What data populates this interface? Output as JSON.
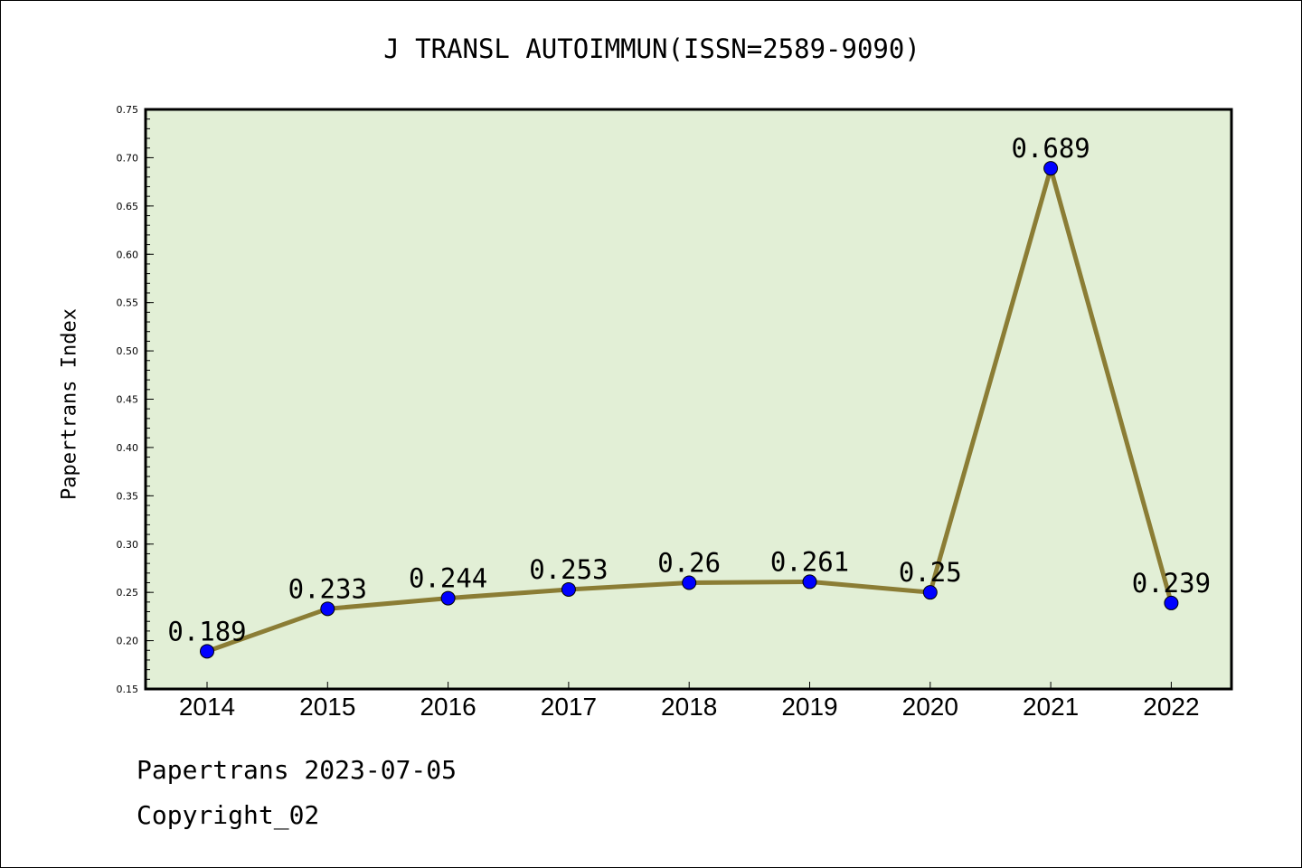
{
  "chart_data": {
    "type": "line",
    "title": "J TRANSL AUTOIMMUN(ISSN=2589-9090)",
    "xlabel": "",
    "ylabel": "Papertrans Index",
    "categories": [
      "2014",
      "2015",
      "2016",
      "2017",
      "2018",
      "2019",
      "2020",
      "2021",
      "2022"
    ],
    "series": [
      {
        "values": [
          0.189,
          0.233,
          0.244,
          0.253,
          0.26,
          0.261,
          0.25,
          0.689,
          0.239
        ]
      }
    ],
    "data_labels": [
      "0.189",
      "0.233",
      "0.244",
      "0.253",
      "0.26",
      "0.261",
      "0.25",
      "0.689",
      "0.239"
    ],
    "ylim": [
      0.15,
      0.75
    ],
    "yticks": [
      "0.15",
      "0.20",
      "0.25",
      "0.30",
      "0.35",
      "0.40",
      "0.45",
      "0.50",
      "0.55",
      "0.60",
      "0.65",
      "0.70",
      "0.75"
    ],
    "grid": false,
    "legend": "none",
    "colors": {
      "plot_background": "#e2efd6",
      "line": "#8b7d35",
      "marker": "#0000ff"
    }
  },
  "footer": {
    "line1": "Papertrans 2023-07-05",
    "line2": "Copyright_02"
  }
}
